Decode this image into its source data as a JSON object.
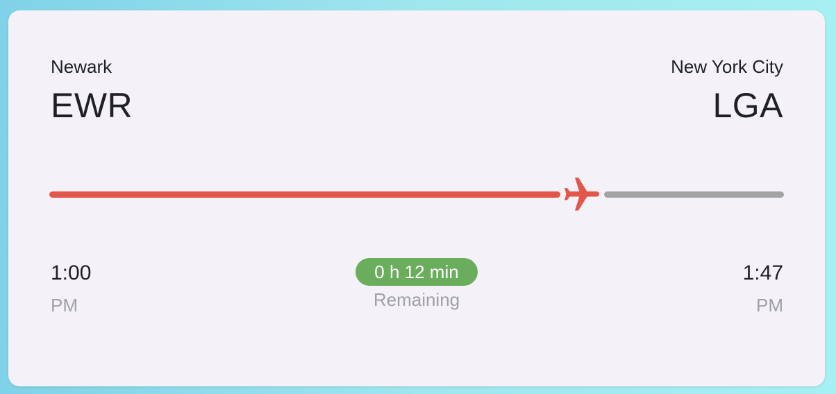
{
  "origin": {
    "city": "Newark",
    "code": "EWR",
    "time": "1:00",
    "ampm": "PM"
  },
  "destination": {
    "city": "New York City",
    "code": "LGA",
    "time": "1:47",
    "ampm": "PM"
  },
  "progress": {
    "fraction_complete": 0.75,
    "remaining_badge": "0 h 12 min",
    "remaining_label": "Remaining",
    "icon": "airplane-icon"
  },
  "colors": {
    "progress_complete": "#e3564a",
    "progress_remaining": "#a3a3a6",
    "badge": "#6aad5d",
    "card_background": "#f4f2f8"
  }
}
